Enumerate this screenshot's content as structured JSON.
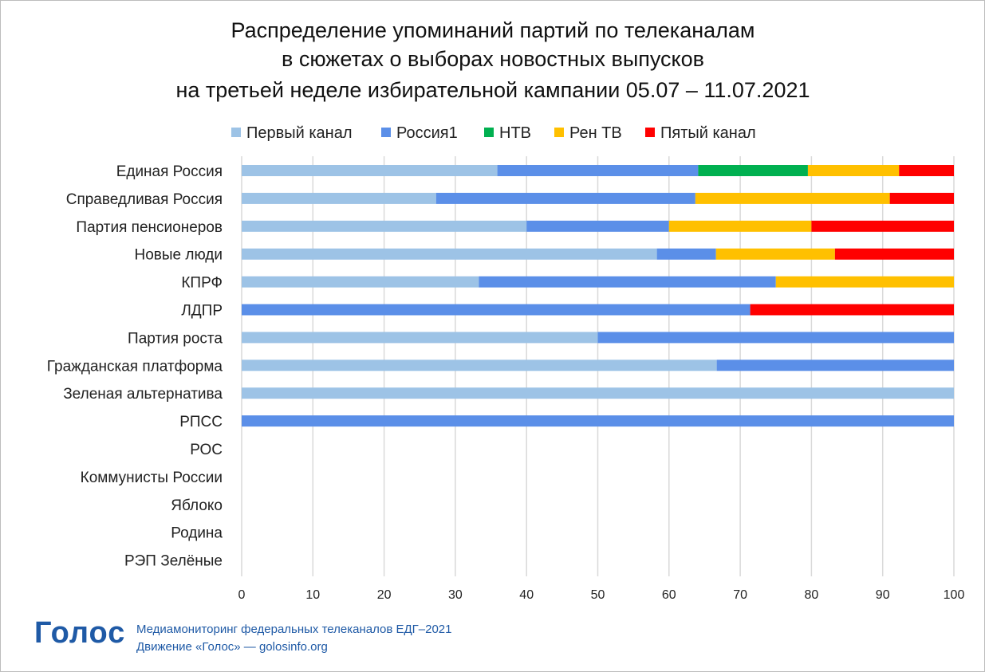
{
  "logo": {
    "text": "Голос"
  },
  "footer": {
    "line1": "Медиамониторинг федеральных телеканалов ЕДГ–2021",
    "line2": "Движение «Голос» — golosinfo.org"
  },
  "chart_data": {
    "type": "bar",
    "orientation": "horizontal",
    "stacked": true,
    "title": [
      "Распределение упоминаний партий по телеканалам",
      "в сюжетах о выборах новостных выпусков",
      "на третьей неделе избирательной кампании 05.07 – 11.07.2021"
    ],
    "xlim": [
      0,
      100
    ],
    "xticks": [
      0,
      10,
      20,
      30,
      40,
      50,
      60,
      70,
      80,
      90,
      100
    ],
    "grid": true,
    "legend_position": "top",
    "categories": [
      "Единая Россия",
      "Справедливая Россия",
      "Партия пенсионеров",
      "Новые люди",
      "КПРФ",
      "ЛДПР",
      "Партия роста",
      "Гражданская платформа",
      "Зеленая альтернатива",
      "РПСС",
      "РОС",
      "Коммунисты России",
      "Яблоко",
      "Родина",
      "РЭП Зелёные"
    ],
    "series": [
      {
        "name": "Первый канал",
        "color": "#9dc3e6",
        "values": [
          35.9,
          27.3,
          40,
          58.3,
          33.3,
          0,
          50,
          66.7,
          100,
          0,
          0,
          0,
          0,
          0,
          0
        ]
      },
      {
        "name": "Россия1",
        "color": "#5b8fe8",
        "values": [
          28.2,
          36.4,
          20,
          8.3,
          41.7,
          71.4,
          50,
          33.3,
          0,
          100,
          0,
          0,
          0,
          0,
          0
        ]
      },
      {
        "name": "НТВ",
        "color": "#00b050",
        "values": [
          15.4,
          0,
          0,
          0,
          0,
          0,
          0,
          0,
          0,
          0,
          0,
          0,
          0,
          0,
          0
        ]
      },
      {
        "name": "Рен ТВ",
        "color": "#ffc000",
        "values": [
          12.8,
          27.3,
          20,
          16.7,
          25,
          0,
          0,
          0,
          0,
          0,
          0,
          0,
          0,
          0,
          0
        ]
      },
      {
        "name": "Пятый канал",
        "color": "#ff0000",
        "values": [
          7.7,
          9.0,
          20,
          16.7,
          0,
          28.6,
          0,
          0,
          0,
          0,
          0,
          0,
          0,
          0,
          0
        ]
      }
    ]
  }
}
